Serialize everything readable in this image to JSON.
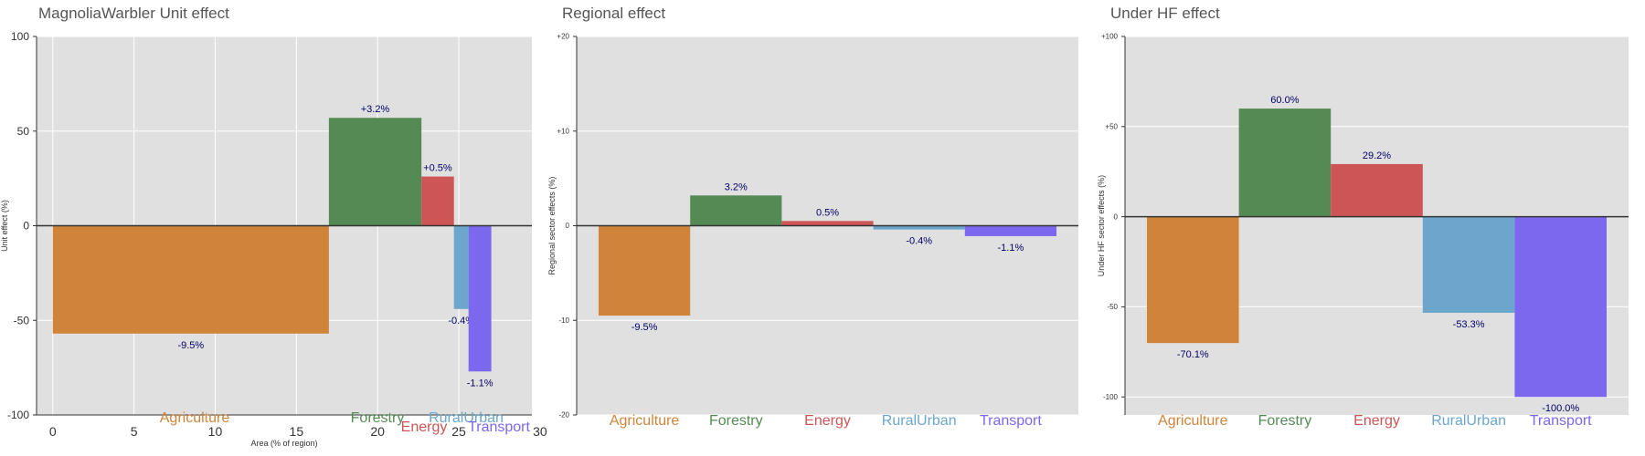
{
  "colors": {
    "Agriculture": "#d0843a",
    "Forestry": "#548b54",
    "Energy": "#cd5555",
    "RuralUrban": "#6ca6cd",
    "Transport": "#7b68ee",
    "panel_background": "#e0e0e0",
    "label_text": "#000066"
  },
  "chart_data": [
    {
      "type": "bar",
      "title": "MagnoliaWarbler Unit effect",
      "xlabel": "Area (% of region)",
      "ylabel": "Unit effect (%)",
      "xlim": [
        -1,
        29.5
      ],
      "ylim": [
        -100,
        100
      ],
      "x_ticks": [
        0,
        5,
        10,
        15,
        20,
        25,
        30
      ],
      "y_ticks": [
        -100,
        -50,
        0,
        50,
        100
      ],
      "y_tick_labels": [
        "-100",
        "-50",
        "0",
        "50",
        "100"
      ],
      "grid": true,
      "bars": [
        {
          "category": "Agriculture",
          "x_start": 0,
          "x_end": 17,
          "value": -57,
          "label": "-9.5%"
        },
        {
          "category": "Forestry",
          "x_start": 17,
          "x_end": 22.7,
          "value": 57,
          "label": "+3.2%"
        },
        {
          "category": "Energy",
          "x_start": 22.7,
          "x_end": 24.7,
          "value": 26,
          "label": "+0.5%"
        },
        {
          "category": "RuralUrban",
          "x_start": 24.7,
          "x_end": 25.6,
          "value": -44,
          "label": "-0.4%"
        },
        {
          "category": "Transport",
          "x_start": 25.6,
          "x_end": 27.0,
          "value": -77,
          "label": "-1.1%"
        }
      ],
      "category_labels": [
        "Agriculture",
        "Forestry",
        "Energy",
        "RuralUrban",
        "Transport"
      ]
    },
    {
      "type": "bar",
      "title": "Regional effect",
      "xlabel": "",
      "ylabel": "Regional sector effects (%)",
      "ylim": [
        -20,
        20
      ],
      "y_ticks": [
        -20,
        -10,
        0,
        10,
        20
      ],
      "y_tick_labels": [
        "-20",
        "-10",
        "0",
        "+10",
        "+20"
      ],
      "grid": true,
      "categories": [
        "Agriculture",
        "Forestry",
        "Energy",
        "RuralUrban",
        "Transport"
      ],
      "values": [
        -9.5,
        3.2,
        0.5,
        -0.4,
        -1.1
      ],
      "labels": [
        "-9.5%",
        "3.2%",
        "0.5%",
        "-0.4%",
        "-1.1%"
      ]
    },
    {
      "type": "bar",
      "title": "Under HF effect",
      "xlabel": "",
      "ylabel": "Under HF sector effects (%)",
      "ylim": [
        -110,
        100
      ],
      "y_ticks": [
        -100,
        -50,
        0,
        50,
        100
      ],
      "y_tick_labels": [
        "-100",
        "-50",
        "0",
        "+50",
        "+100"
      ],
      "grid": true,
      "categories": [
        "Agriculture",
        "Forestry",
        "Energy",
        "RuralUrban",
        "Transport"
      ],
      "values": [
        -70.1,
        60.0,
        29.2,
        -53.3,
        -100.0
      ],
      "labels": [
        "-70.1%",
        "60.0%",
        "29.2%",
        "-53.3%",
        "-100.0%"
      ]
    }
  ]
}
